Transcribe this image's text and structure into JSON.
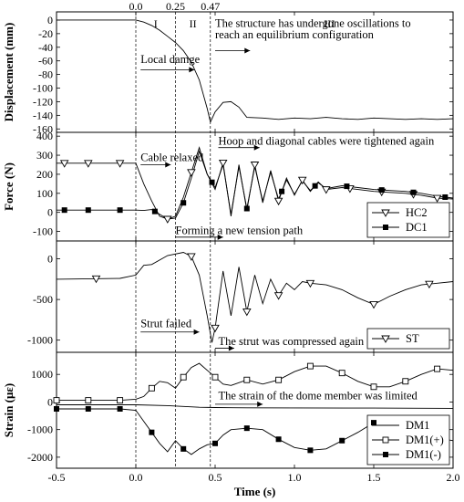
{
  "chart_data": {
    "type": "line",
    "xlabel": "Time (s)",
    "xlim": [
      -0.5,
      2.0
    ],
    "xticks": [
      "-0.5",
      "0.0",
      "0.5",
      "1.0",
      "1.5",
      "2.0"
    ],
    "phase_lines": [
      0.0,
      0.25,
      0.47
    ],
    "phase_line_labels": [
      "0.0",
      "0.25",
      "0.47"
    ],
    "phase_labels": [
      {
        "text": "I",
        "x": 0.125
      },
      {
        "text": "II",
        "x": 0.36
      },
      {
        "text": "III",
        "x": 1.22
      }
    ],
    "panels": [
      {
        "id": "displacement",
        "ylabel": "Displacement (mm)",
        "ylim": [
          -165,
          12
        ],
        "yticks": [
          0,
          -20,
          -40,
          -60,
          -80,
          -100,
          -120,
          -140,
          -160
        ],
        "annotations": [
          {
            "text": "The structure has undergone oscillations to",
            "x": 0.5,
            "y": -10
          },
          {
            "text": "reach an equilibrium configuration",
            "x": 0.5,
            "y": -27
          },
          {
            "text": "Local damge",
            "x": 0.03,
            "y": -63
          }
        ],
        "series": [
          {
            "name": "",
            "x": [
              -0.5,
              0.0,
              0.05,
              0.1,
              0.15,
              0.2,
              0.25,
              0.3,
              0.35,
              0.4,
              0.45,
              0.47,
              0.5,
              0.55,
              0.6,
              0.65,
              0.7,
              0.8,
              0.9,
              1.0,
              1.1,
              1.2,
              1.3,
              1.4,
              1.5,
              1.6,
              1.7,
              1.8,
              1.9,
              2.0
            ],
            "y": [
              0,
              0,
              -3,
              -8,
              -15,
              -24,
              -33,
              -45,
              -62,
              -88,
              -130,
              -150,
              -135,
              -121,
              -120,
              -128,
              -143,
              -144,
              -146,
              -144,
              -145,
              -143,
              -145,
              -146,
              -144,
              -145,
              -146,
              -145,
              -146,
              -145
            ]
          }
        ]
      },
      {
        "id": "force",
        "ylabel": "Force (N)",
        "ylim": [
          -150,
          420
        ],
        "yticks": [
          400,
          300,
          200,
          100,
          0,
          -100
        ],
        "annotations": [
          {
            "text": "Hoop and diagonal cables were tightened again",
            "x": 0.52,
            "y": 355
          },
          {
            "text": "Cable relaxed",
            "x": 0.03,
            "y": 270
          },
          {
            "text": "Forming a new tension path",
            "x": 0.25,
            "y": -113
          }
        ],
        "legend": [
          "HC2",
          "DC1"
        ],
        "series": [
          {
            "name": "HC2",
            "marker": "triangle-down-open",
            "x": [
              -0.5,
              0.0,
              0.05,
              0.1,
              0.15,
              0.2,
              0.25,
              0.3,
              0.35,
              0.4,
              0.45,
              0.5,
              0.55,
              0.6,
              0.65,
              0.7,
              0.75,
              0.8,
              0.85,
              0.9,
              0.95,
              1.0,
              1.05,
              1.1,
              1.15,
              1.2,
              1.3,
              1.4,
              1.5,
              1.6,
              1.7,
              1.8,
              1.9,
              2.0
            ],
            "y": [
              258,
              258,
              150,
              60,
              -20,
              -35,
              -20,
              80,
              210,
              340,
              200,
              120,
              260,
              -20,
              250,
              10,
              250,
              50,
              220,
              60,
              180,
              90,
              170,
              110,
              160,
              120,
              130,
              120,
              110,
              105,
              100,
              90,
              75,
              70
            ],
            "marker_x": [
              -0.45,
              -0.3,
              -0.1,
              0.2,
              0.35,
              0.55,
              0.75,
              0.9,
              1.05,
              1.2,
              1.35,
              1.55,
              1.75,
              1.9
            ]
          },
          {
            "name": "DC1",
            "marker": "square-filled",
            "x": [
              -0.5,
              0.0,
              0.05,
              0.1,
              0.15,
              0.2,
              0.25,
              0.3,
              0.35,
              0.4,
              0.45,
              0.5,
              0.55,
              0.6,
              0.65,
              0.7,
              0.75,
              0.8,
              0.85,
              0.9,
              0.95,
              1.0,
              1.05,
              1.1,
              1.15,
              1.2,
              1.3,
              1.4,
              1.5,
              1.6,
              1.7,
              1.8,
              1.9,
              2.0
            ],
            "y": [
              12,
              12,
              10,
              15,
              -10,
              -35,
              -30,
              50,
              180,
              320,
              200,
              130,
              250,
              -10,
              240,
              20,
              240,
              60,
              210,
              70,
              170,
              95,
              165,
              115,
              155,
              125,
              140,
              130,
              120,
              115,
              110,
              100,
              85,
              75
            ],
            "marker_x": [
              -0.45,
              -0.3,
              -0.1,
              0.12,
              0.3,
              0.48,
              0.7,
              0.92,
              1.13,
              1.33,
              1.55,
              1.75,
              1.95
            ]
          }
        ]
      },
      {
        "id": "strut",
        "ylabel": "",
        "ylim": [
          -1150,
          220
        ],
        "yticks": [
          0,
          -500,
          -1000
        ],
        "annotations": [
          {
            "text": "Strut failed",
            "x": 0.03,
            "y": -840
          },
          {
            "text": "The strut was compressed again",
            "x": 0.52,
            "y": -1060
          }
        ],
        "legend": [
          "ST"
        ],
        "series": [
          {
            "name": "ST",
            "marker": "triangle-down-open",
            "x": [
              -0.5,
              -0.1,
              0.0,
              0.05,
              0.1,
              0.2,
              0.3,
              0.35,
              0.4,
              0.45,
              0.48,
              0.5,
              0.55,
              0.6,
              0.65,
              0.7,
              0.75,
              0.8,
              0.85,
              0.9,
              0.95,
              1.0,
              1.05,
              1.1,
              1.2,
              1.3,
              1.4,
              1.5,
              1.6,
              1.7,
              1.8,
              1.9,
              2.0
            ],
            "y": [
              -250,
              -240,
              -200,
              -80,
              -70,
              40,
              80,
              30,
              -200,
              -700,
              -1030,
              -850,
              -150,
              -700,
              -100,
              -650,
              -200,
              -550,
              -250,
              -450,
              -300,
              -380,
              -280,
              -300,
              -320,
              -380,
              -480,
              -560,
              -460,
              -380,
              -320,
              -300,
              -280
            ],
            "marker_x": [
              -0.25,
              0.35,
              0.5,
              0.7,
              0.9,
              1.1,
              1.5,
              1.85
            ]
          }
        ]
      },
      {
        "id": "strain",
        "ylabel": "Strain (με)",
        "ylim": [
          -2400,
          1800
        ],
        "yticks": [
          1000,
          0,
          -1000,
          -2000
        ],
        "annotations": [
          {
            "text": "The strain of the dome member was limited",
            "x": 0.52,
            "y": 90
          }
        ],
        "legend": [
          "DM1",
          "DM1(+)",
          "DM1(-)"
        ],
        "series": [
          {
            "name": "DM1",
            "marker": "none",
            "x": [
              -0.5,
              0.0,
              0.2,
              0.4,
              0.5,
              0.7,
              1.0,
              1.5,
              2.0
            ],
            "y": [
              -100,
              -100,
              -130,
              -190,
              -200,
              -210,
              -215,
              -220,
              -230
            ]
          },
          {
            "name": "DM1(+)",
            "marker": "square-open",
            "x": [
              -0.5,
              -0.1,
              0.0,
              0.05,
              0.1,
              0.15,
              0.2,
              0.25,
              0.3,
              0.35,
              0.4,
              0.45,
              0.5,
              0.55,
              0.6,
              0.7,
              0.8,
              0.9,
              1.0,
              1.1,
              1.2,
              1.3,
              1.4,
              1.5,
              1.6,
              1.7,
              1.8,
              1.9,
              2.0
            ],
            "y": [
              60,
              60,
              100,
              200,
              500,
              750,
              700,
              500,
              900,
              1250,
              1400,
              1150,
              900,
              650,
              600,
              800,
              650,
              800,
              1100,
              1300,
              1300,
              1050,
              750,
              550,
              550,
              750,
              1000,
              1200,
              1150
            ],
            "marker_x": [
              -0.5,
              -0.3,
              -0.1,
              0.1,
              0.3,
              0.5,
              0.7,
              0.9,
              1.1,
              1.3,
              1.5,
              1.7,
              1.9
            ]
          },
          {
            "name": "DM1(-)",
            "marker": "square-filled",
            "x": [
              -0.5,
              -0.1,
              0.0,
              0.05,
              0.1,
              0.15,
              0.2,
              0.25,
              0.3,
              0.35,
              0.4,
              0.45,
              0.5,
              0.55,
              0.6,
              0.7,
              0.8,
              0.9,
              1.0,
              1.1,
              1.2,
              1.3,
              1.4,
              1.5,
              1.6,
              1.7,
              1.8,
              1.9,
              2.0
            ],
            "y": [
              -250,
              -250,
              -300,
              -700,
              -1100,
              -1500,
              -1800,
              -1400,
              -1700,
              -1900,
              -1700,
              -1550,
              -1500,
              -1200,
              -1000,
              -950,
              -1000,
              -1350,
              -1650,
              -1750,
              -1700,
              -1400,
              -1100,
              -750,
              -650,
              -800,
              -1050,
              -1300,
              -1400
            ],
            "marker_x": [
              -0.5,
              -0.3,
              -0.1,
              0.1,
              0.3,
              0.5,
              0.7,
              0.9,
              1.1,
              1.3,
              1.5
            ]
          }
        ]
      }
    ]
  }
}
